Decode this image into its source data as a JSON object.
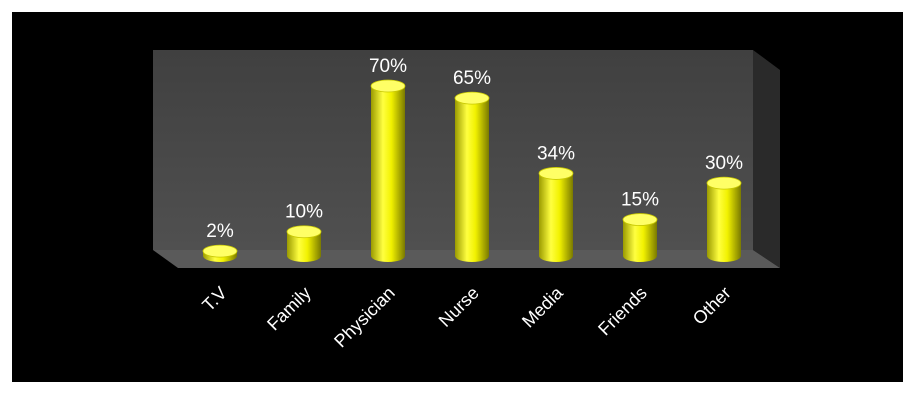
{
  "chart_data": {
    "type": "bar",
    "style": "3d-cylinder",
    "categories": [
      "T.V",
      "Family",
      "Physician",
      "Nurse",
      "Media",
      "Friends",
      "Other"
    ],
    "values": [
      2,
      10,
      70,
      65,
      34,
      15,
      30
    ],
    "data_labels": [
      "2%",
      "10%",
      "70%",
      "65%",
      "34%",
      "15%",
      "30%"
    ],
    "unit": "%",
    "ylim": [
      0,
      100
    ],
    "grid": false,
    "legend": "none",
    "colors": {
      "background": "#000000",
      "plot_wall": "#4a4a4a",
      "floor": "#5a5a5a",
      "bar": "#f2f200",
      "bar_top": "#ffff66",
      "text": "#ffffff"
    }
  }
}
